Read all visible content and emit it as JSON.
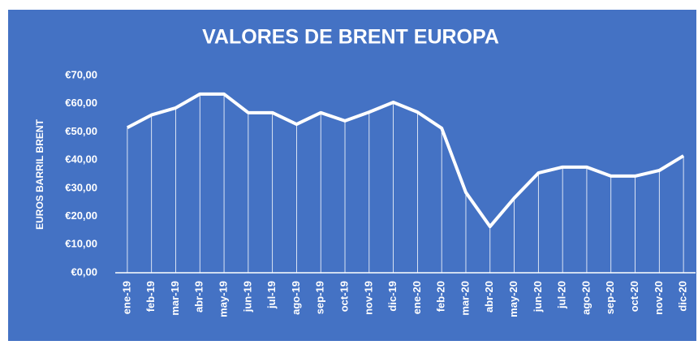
{
  "chart_data": {
    "type": "line",
    "title": "VALORES DE BRENT EUROPA",
    "y_label": "EUROS BARRIL BRENT",
    "categories": [
      "ene-19",
      "feb-19",
      "mar-19",
      "abr-19",
      "may-19",
      "jun-19",
      "jul-19",
      "ago-19",
      "sep-19",
      "oct-19",
      "nov-19",
      "dic-19",
      "ene-20",
      "feb-20",
      "mar-20",
      "abr-20",
      "may-20",
      "jun-20",
      "jul-20",
      "ago-20",
      "sep-20",
      "oct-20",
      "nov-20",
      "dic-20"
    ],
    "values": [
      51.5,
      56,
      58.5,
      63.4,
      63.4,
      56.8,
      56.8,
      52.7,
      56.8,
      53.9,
      57,
      60.5,
      57,
      51.3,
      28.5,
      16.4,
      26.5,
      35.4,
      37.5,
      37.5,
      34.3,
      34.3,
      36.3,
      41.5
    ],
    "color": "#ffffff",
    "background": "#4472c4",
    "ylim": [
      0,
      70
    ],
    "yticks": [
      {
        "value": 0,
        "label": "€0,00"
      },
      {
        "value": 10,
        "label": "€10,00"
      },
      {
        "value": 20,
        "label": "€20,00"
      },
      {
        "value": 30,
        "label": "€30,00"
      },
      {
        "value": 40,
        "label": "€40,00"
      },
      {
        "value": 50,
        "label": "€50,00"
      },
      {
        "value": 60,
        "label": "€60,00"
      },
      {
        "value": 70,
        "label": "€70,00"
      }
    ],
    "grid": false,
    "drop_lines": true
  }
}
